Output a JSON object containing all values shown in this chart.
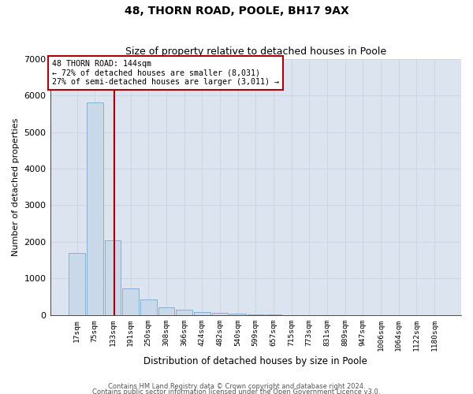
{
  "title1": "48, THORN ROAD, POOLE, BH17 9AX",
  "title2": "Size of property relative to detached houses in Poole",
  "xlabel": "Distribution of detached houses by size in Poole",
  "ylabel": "Number of detached properties",
  "bar_labels": [
    "17sqm",
    "75sqm",
    "133sqm",
    "191sqm",
    "250sqm",
    "308sqm",
    "366sqm",
    "424sqm",
    "482sqm",
    "540sqm",
    "599sqm",
    "657sqm",
    "715sqm",
    "773sqm",
    "831sqm",
    "889sqm",
    "947sqm",
    "1006sqm",
    "1064sqm",
    "1122sqm",
    "1180sqm"
  ],
  "bar_values": [
    1700,
    5800,
    2050,
    720,
    420,
    220,
    140,
    95,
    65,
    35,
    25,
    12,
    8,
    4,
    2,
    1,
    0,
    0,
    0,
    0,
    0
  ],
  "bar_color": "#c9d9ea",
  "bar_edgecolor": "#7aaac8",
  "grid_color": "#cdd6e3",
  "background_color": "#dce4ef",
  "annotation_text": "48 THORN ROAD: 144sqm\n← 72% of detached houses are smaller (8,031)\n27% of semi-detached houses are larger (3,011) →",
  "vline_color": "#aa0000",
  "annotation_box_edgecolor": "#aa0000",
  "ylim": [
    0,
    7000
  ],
  "yticks": [
    0,
    1000,
    2000,
    3000,
    4000,
    5000,
    6000,
    7000
  ],
  "footer1": "Contains HM Land Registry data © Crown copyright and database right 2024.",
  "footer2": "Contains public sector information licensed under the Open Government Licence v3.0."
}
